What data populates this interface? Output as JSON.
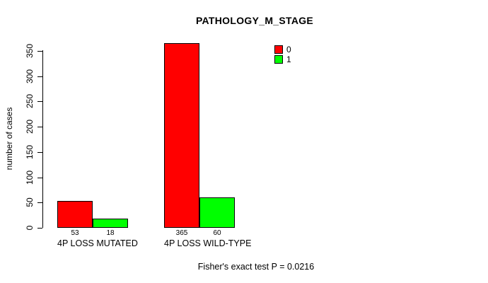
{
  "chart_data": {
    "type": "bar",
    "title": "PATHOLOGY_M_STAGE",
    "xlabel": "",
    "ylabel": "number of cases",
    "ylim": [
      0,
      350
    ],
    "yticks": [
      0,
      50,
      100,
      150,
      200,
      250,
      300,
      350
    ],
    "categories": [
      "4P LOSS MUTATED",
      "4P LOSS WILD-TYPE"
    ],
    "series": [
      {
        "name": "0",
        "color": "#ff0000",
        "values": [
          53,
          365
        ]
      },
      {
        "name": "1",
        "color": "#00ff00",
        "values": [
          18,
          60
        ]
      }
    ],
    "bar_value_labels": [
      [
        53,
        18
      ],
      [
        365,
        60
      ]
    ],
    "legend_position": "top-right",
    "grid": false,
    "background": "#ffffff",
    "axis_color": "#000000",
    "annotation": "Fisher's exact test P = 0.0216"
  }
}
